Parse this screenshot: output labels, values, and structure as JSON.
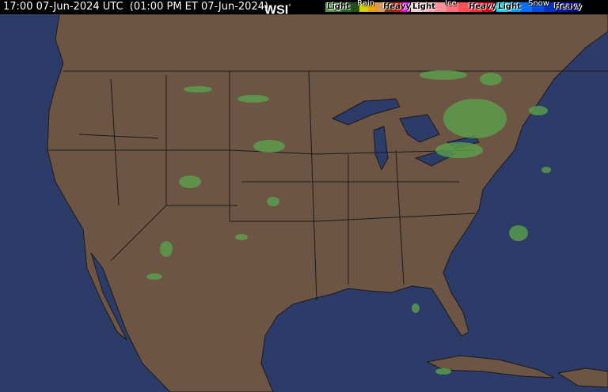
{
  "header": {
    "timestamp": "17:00 07-Jun-2024 UTC  (01:00 PM ET 07-Jun-2024)",
    "logo": "WSI",
    "logo_mark": "°"
  },
  "legend": {
    "rain": {
      "title": "Rain",
      "light": "Light",
      "heavy": "Heavy",
      "colors": [
        "#5a9a50",
        "#3e7d36",
        "#2c6626",
        "#1f5018",
        "#d6d400",
        "#f0a000",
        "#d89860",
        "#8a3a10",
        "#c02000",
        "#ff00ff"
      ]
    },
    "ice": {
      "title": "Ice",
      "light": "Light",
      "heavy": "Heavy",
      "colors": [
        "#ffd0d8",
        "#ffb0b8",
        "#ff9098",
        "#ff7078",
        "#ff5058",
        "#ff3038",
        "#e00010"
      ]
    },
    "snow": {
      "title": "Snow",
      "light": "Light",
      "heavy": "Heavy",
      "colors": [
        "#00e0ff",
        "#00a0ff",
        "#0070ff",
        "#0050e0",
        "#0030c0",
        "#0018a0",
        "#000080"
      ]
    }
  },
  "map": {
    "ocean_color": "#2c3b68",
    "land_color": "#6d5545",
    "border_color": "#1a1a1a",
    "precip_color": "#5aa04a"
  }
}
